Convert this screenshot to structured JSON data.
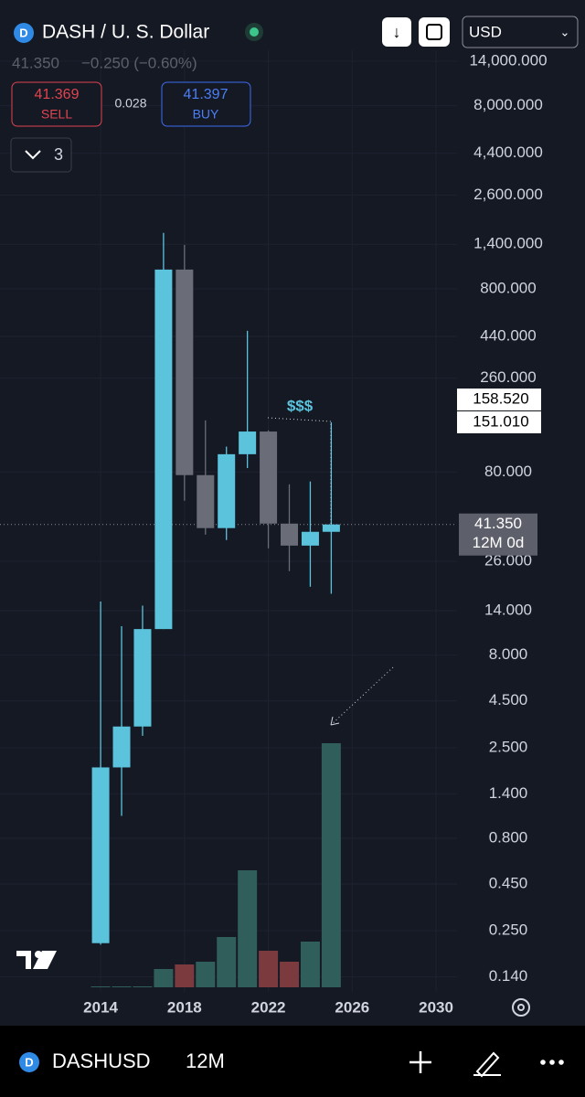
{
  "header": {
    "title": "DASH / U. S. Dollar",
    "last": "41.350",
    "change": "−0.250 (−0.60%)",
    "sell_price": "41.369",
    "sell_label": "SELL",
    "spread": "0.028",
    "buy_price": "41.397",
    "buy_label": "BUY",
    "indicators_count": "3",
    "currency": "USD"
  },
  "chart_data": {
    "type": "candlestick",
    "log_scale": true,
    "grid": true,
    "x": [
      2014,
      2015,
      2016,
      2017,
      2018,
      2019,
      2020,
      2021,
      2022,
      2023,
      2024,
      2025
    ],
    "open": [
      0.214,
      1.95,
      3.26,
      11.1,
      1019,
      76.9,
      39.5,
      100,
      133,
      41.8,
      31.7,
      37.7
    ],
    "high": [
      15.7,
      11.5,
      14.9,
      1615,
      1390,
      153,
      110,
      472,
      135,
      68.5,
      71,
      149.6
    ],
    "low": [
      0.21,
      1.06,
      2.9,
      11.1,
      55.7,
      36.4,
      34,
      84,
      30.6,
      23.0,
      18.9,
      17.3
    ],
    "close": [
      1.95,
      3.26,
      11.1,
      1019,
      76.9,
      39.5,
      100,
      133,
      41.8,
      31.7,
      37.7,
      41.35
    ],
    "up_color": "#5bc4dc",
    "down_color": "#6a6d78",
    "volume": [
      1,
      1,
      1,
      20,
      25,
      28,
      55,
      128,
      40,
      28,
      50,
      267
    ],
    "volume_colors": [
      "#2f5e5b",
      "#2f5e5b",
      "#2f5e5b",
      "#2f5e5b",
      "#7a3a3e",
      "#2f5e5b",
      "#2f5e5b",
      "#2f5e5b",
      "#7a3a3e",
      "#7a3a3e",
      "#2f5e5b",
      "#2f5e5b"
    ],
    "xlim": [
      2009.2,
      2031
    ],
    "xticks": [
      2014,
      2018,
      2022,
      2026,
      2030
    ],
    "ylim": [
      0.116,
      30200
    ],
    "yticks": [
      {
        "value": 14000,
        "label": "14,000.000"
      },
      {
        "value": 8000,
        "label": "8,000.000"
      },
      {
        "value": 4400,
        "label": "4,400.000"
      },
      {
        "value": 2600,
        "label": "2,600.000"
      },
      {
        "value": 1400,
        "label": "1,400.000"
      },
      {
        "value": 800,
        "label": "800.000"
      },
      {
        "value": 440,
        "label": "440.000"
      },
      {
        "value": 260,
        "label": "260.000"
      },
      {
        "value": 80,
        "label": "80.000"
      },
      {
        "value": 26,
        "label": "26.000"
      },
      {
        "value": 14,
        "label": "14.000"
      },
      {
        "value": 8,
        "label": "8.000"
      },
      {
        "value": 4.5,
        "label": "4.500"
      },
      {
        "value": 2.5,
        "label": "2.500"
      },
      {
        "value": 1.4,
        "label": "1.400"
      },
      {
        "value": 0.8,
        "label": "0.800"
      },
      {
        "value": 0.45,
        "label": "0.450"
      },
      {
        "value": 0.25,
        "label": "0.250"
      },
      {
        "value": 0.14,
        "label": "0.140"
      }
    ],
    "price_labels": [
      {
        "value": 158.52,
        "label": "158.520"
      },
      {
        "value": 151.01,
        "label": "151.010"
      }
    ],
    "last_price": {
      "value": 41.35,
      "label": "41.350"
    },
    "countdown": "12M 0d",
    "annotation": "$$$"
  },
  "footer": {
    "symbol": "DASHUSD",
    "interval": "12M"
  }
}
